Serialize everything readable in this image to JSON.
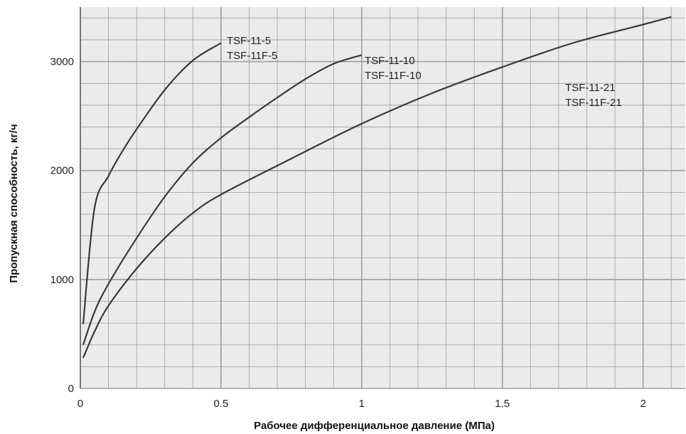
{
  "chart_data": {
    "type": "line",
    "title": "",
    "xlabel": "Рабочее дифференциальное давление (МПа)",
    "ylabel": "Пропускная способность, кг/ч",
    "xlim": [
      0,
      2.15
    ],
    "ylim": [
      0,
      3500
    ],
    "xticks": [
      0,
      0.5,
      1,
      1.5,
      2
    ],
    "xtick_labels": [
      "0",
      "0.5",
      "1",
      "1.5",
      "2"
    ],
    "yticks": [
      0,
      1000,
      2000,
      3000
    ],
    "ytick_labels": [
      "0",
      "1000",
      "2000",
      "3000"
    ],
    "grid": true,
    "colors": {
      "grid": "#9e9e9e",
      "plot_bg": "#ebebeb",
      "line": "#3a3a3a"
    },
    "series": [
      {
        "label_lines": [
          "TSF-11-5",
          "TSF-11F-5"
        ],
        "x": [
          0.01,
          0.05,
          0.1,
          0.15,
          0.2,
          0.3,
          0.4,
          0.5
        ],
        "y": [
          590,
          1650,
          1950,
          2180,
          2380,
          2740,
          3010,
          3170
        ]
      },
      {
        "label_lines": [
          "TSF-11-10",
          "TSF-11F-10"
        ],
        "x": [
          0.01,
          0.05,
          0.1,
          0.2,
          0.3,
          0.4,
          0.5,
          0.6,
          0.7,
          0.8,
          0.9,
          1.0
        ],
        "y": [
          400,
          700,
          960,
          1380,
          1760,
          2070,
          2300,
          2490,
          2670,
          2840,
          2980,
          3060
        ]
      },
      {
        "label_lines": [
          "TSF-11-21",
          "TSF-11F-21"
        ],
        "x": [
          0.01,
          0.05,
          0.1,
          0.2,
          0.3,
          0.4,
          0.5,
          0.75,
          1.0,
          1.25,
          1.5,
          1.75,
          2.0,
          2.1
        ],
        "y": [
          280,
          520,
          760,
          1100,
          1380,
          1610,
          1780,
          2110,
          2430,
          2710,
          2950,
          3170,
          3340,
          3410
        ]
      }
    ]
  }
}
